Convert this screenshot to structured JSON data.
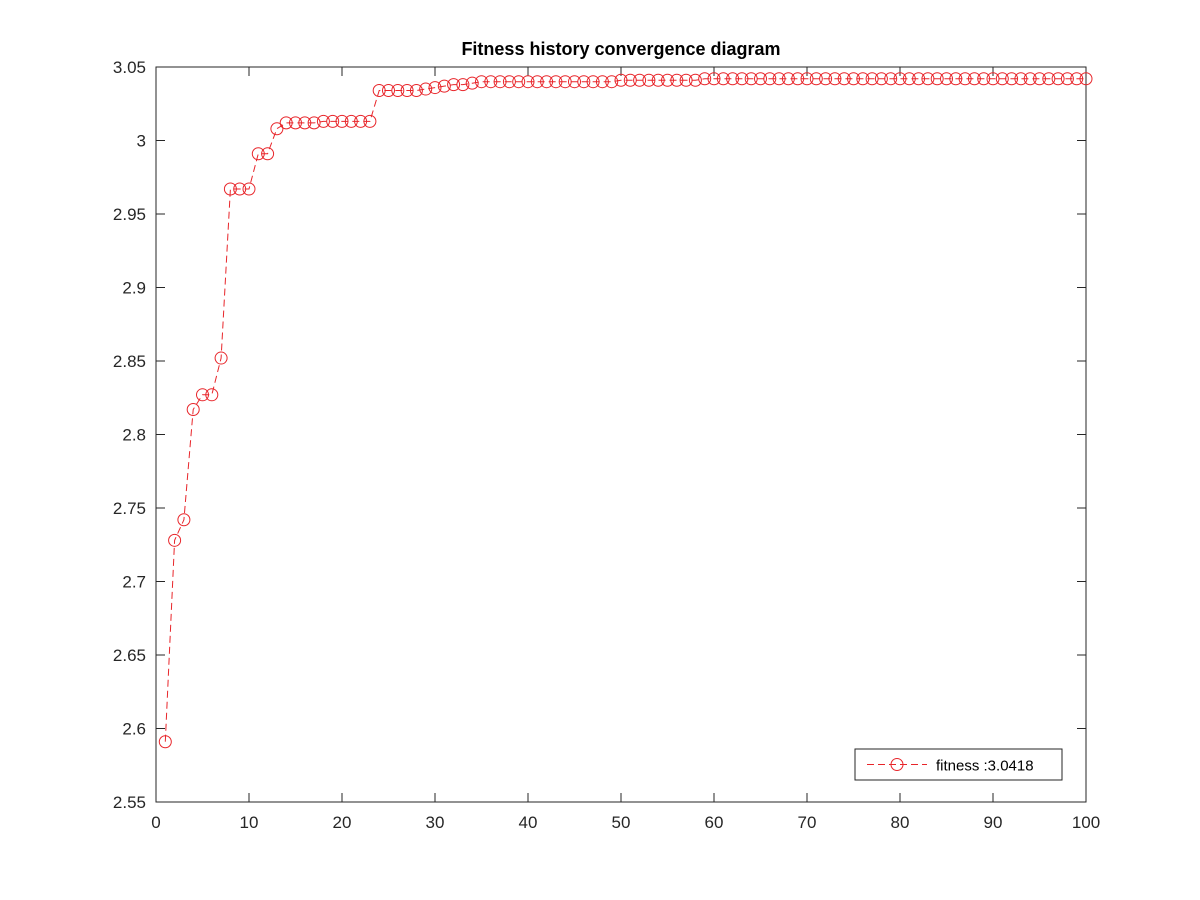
{
  "chart_data": {
    "type": "line",
    "title": "Fitness history convergence diagram",
    "xlabel": "",
    "ylabel": "",
    "xlim": [
      0,
      100
    ],
    "ylim": [
      2.55,
      3.05
    ],
    "xticks": [
      "0",
      "10",
      "20",
      "30",
      "40",
      "50",
      "60",
      "70",
      "80",
      "90",
      "100"
    ],
    "yticks": [
      "2.55",
      "2.6",
      "2.65",
      "2.7",
      "2.75",
      "2.8",
      "2.85",
      "2.9",
      "2.95",
      "3",
      "3.05"
    ],
    "grid": false,
    "legend_position": "bottom-right",
    "series": [
      {
        "name": "fitness :3.0418",
        "color": "#e8252a",
        "line_style": "dashed",
        "marker": "circle",
        "x": [
          1,
          2,
          3,
          4,
          5,
          6,
          7,
          8,
          9,
          10,
          11,
          12,
          13,
          14,
          15,
          16,
          17,
          18,
          19,
          20,
          21,
          22,
          23,
          24,
          25,
          26,
          27,
          28,
          29,
          30,
          31,
          32,
          33,
          34,
          35,
          36,
          37,
          38,
          39,
          40,
          41,
          42,
          43,
          44,
          45,
          46,
          47,
          48,
          49,
          50,
          51,
          52,
          53,
          54,
          55,
          56,
          57,
          58,
          59,
          60,
          61,
          62,
          63,
          64,
          65,
          66,
          67,
          68,
          69,
          70,
          71,
          72,
          73,
          74,
          75,
          76,
          77,
          78,
          79,
          80,
          81,
          82,
          83,
          84,
          85,
          86,
          87,
          88,
          89,
          90,
          91,
          92,
          93,
          94,
          95,
          96,
          97,
          98,
          99,
          100
        ],
        "values": [
          2.591,
          2.728,
          2.742,
          2.817,
          2.827,
          2.827,
          2.852,
          2.967,
          2.967,
          2.967,
          2.991,
          2.991,
          3.008,
          3.012,
          3.012,
          3.012,
          3.012,
          3.013,
          3.013,
          3.013,
          3.013,
          3.013,
          3.013,
          3.034,
          3.034,
          3.034,
          3.034,
          3.034,
          3.035,
          3.036,
          3.037,
          3.038,
          3.038,
          3.039,
          3.04,
          3.04,
          3.04,
          3.04,
          3.04,
          3.04,
          3.04,
          3.04,
          3.04,
          3.04,
          3.04,
          3.04,
          3.04,
          3.04,
          3.04,
          3.041,
          3.041,
          3.041,
          3.041,
          3.041,
          3.041,
          3.041,
          3.041,
          3.041,
          3.042,
          3.042,
          3.042,
          3.042,
          3.042,
          3.042,
          3.042,
          3.042,
          3.042,
          3.042,
          3.042,
          3.042,
          3.042,
          3.042,
          3.042,
          3.042,
          3.042,
          3.042,
          3.042,
          3.042,
          3.042,
          3.042,
          3.042,
          3.042,
          3.042,
          3.042,
          3.042,
          3.042,
          3.042,
          3.042,
          3.042,
          3.042,
          3.042,
          3.042,
          3.042,
          3.042,
          3.042,
          3.042,
          3.042,
          3.042,
          3.042,
          3.042
        ]
      }
    ]
  }
}
